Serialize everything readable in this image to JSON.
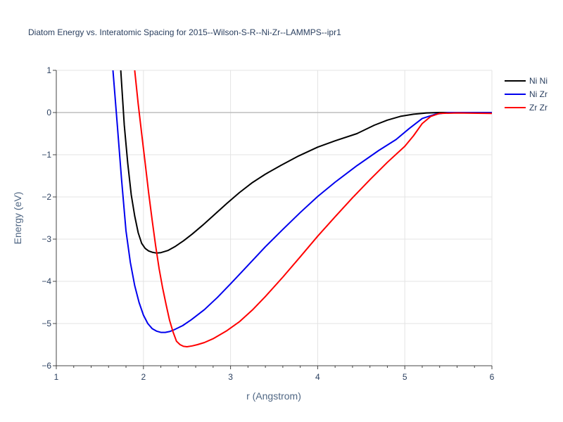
{
  "chart_data": {
    "type": "line",
    "title": "Diatom Energy vs. Interatomic Spacing for 2015--Wilson-S-R--Ni-Zr--LAMMPS--ipr1",
    "xlabel": "r (Angstrom)",
    "ylabel": "Energy (eV)",
    "xlim": [
      1,
      6
    ],
    "ylim": [
      -6,
      1
    ],
    "xticks": [
      1,
      2,
      3,
      4,
      5,
      6
    ],
    "xtick_labels": [
      "1",
      "2",
      "3",
      "4",
      "5",
      "6"
    ],
    "yticks": [
      1,
      0,
      -1,
      -2,
      -3,
      -4,
      -5,
      -6
    ],
    "ytick_labels": [
      "1",
      "0",
      "−1",
      "−2",
      "−3",
      "−4",
      "−5",
      "−6"
    ],
    "grid": true,
    "legend_position": "top-right",
    "series": [
      {
        "name": "Ni Ni",
        "color": "#000000",
        "x": [
          1.74,
          1.78,
          1.82,
          1.86,
          1.9,
          1.94,
          1.98,
          2.02,
          2.06,
          2.1,
          2.15,
          2.2,
          2.28,
          2.36,
          2.46,
          2.56,
          2.68,
          2.82,
          2.96,
          3.1,
          3.25,
          3.4,
          3.58,
          3.78,
          4.0,
          4.2,
          4.45,
          4.65,
          4.8,
          4.95,
          5.1,
          5.25,
          5.4,
          5.6,
          6.0
        ],
        "y": [
          1.0,
          -0.3,
          -1.2,
          -1.95,
          -2.45,
          -2.85,
          -3.1,
          -3.22,
          -3.28,
          -3.31,
          -3.33,
          -3.32,
          -3.27,
          -3.18,
          -3.04,
          -2.88,
          -2.67,
          -2.41,
          -2.15,
          -1.9,
          -1.66,
          -1.46,
          -1.25,
          -1.03,
          -0.82,
          -0.67,
          -0.5,
          -0.3,
          -0.18,
          -0.09,
          -0.04,
          -0.01,
          0.0,
          0.0,
          0.0
        ]
      },
      {
        "name": "Ni Zr",
        "color": "#0000ee",
        "x": [
          1.65,
          1.7,
          1.75,
          1.8,
          1.85,
          1.9,
          1.95,
          2.0,
          2.05,
          2.1,
          2.15,
          2.2,
          2.25,
          2.3,
          2.35,
          2.45,
          2.55,
          2.7,
          2.85,
          3.0,
          3.2,
          3.4,
          3.6,
          3.8,
          4.0,
          4.2,
          4.45,
          4.7,
          4.9,
          5.05,
          5.2,
          5.35,
          5.5,
          5.7,
          6.0
        ],
        "y": [
          1.0,
          -0.3,
          -1.6,
          -2.8,
          -3.55,
          -4.1,
          -4.5,
          -4.8,
          -5.0,
          -5.12,
          -5.18,
          -5.21,
          -5.21,
          -5.19,
          -5.15,
          -5.05,
          -4.91,
          -4.67,
          -4.38,
          -4.06,
          -3.62,
          -3.18,
          -2.77,
          -2.37,
          -1.99,
          -1.65,
          -1.26,
          -0.9,
          -0.64,
          -0.38,
          -0.14,
          -0.04,
          0.0,
          0.0,
          0.0
        ]
      },
      {
        "name": "Zr Zr",
        "color": "#ff0000",
        "x": [
          1.9,
          1.94,
          1.98,
          2.02,
          2.06,
          2.1,
          2.14,
          2.18,
          2.22,
          2.26,
          2.3,
          2.34,
          2.38,
          2.42,
          2.46,
          2.5,
          2.56,
          2.62,
          2.7,
          2.8,
          2.95,
          3.1,
          3.25,
          3.4,
          3.6,
          3.8,
          4.0,
          4.2,
          4.4,
          4.6,
          4.8,
          5.0,
          5.1,
          5.2,
          5.3,
          5.4,
          5.6,
          6.0
        ],
        "y": [
          1.0,
          0.2,
          -0.5,
          -1.2,
          -1.9,
          -2.55,
          -3.15,
          -3.7,
          -4.15,
          -4.55,
          -4.92,
          -5.2,
          -5.42,
          -5.5,
          -5.54,
          -5.55,
          -5.53,
          -5.5,
          -5.45,
          -5.36,
          -5.18,
          -4.96,
          -4.68,
          -4.36,
          -3.9,
          -3.42,
          -2.93,
          -2.47,
          -2.02,
          -1.59,
          -1.18,
          -0.8,
          -0.55,
          -0.26,
          -0.09,
          -0.02,
          -0.01,
          -0.02
        ]
      }
    ]
  }
}
